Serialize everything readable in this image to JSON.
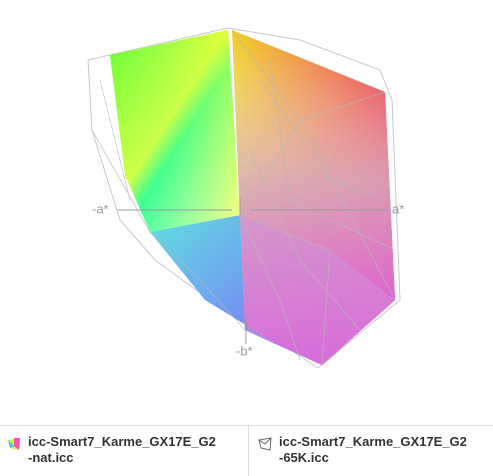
{
  "axes": {
    "neg_a": "-a*",
    "pos_a": "a*",
    "neg_b": "-b*"
  },
  "legend": [
    {
      "label": "icc-Smart7_Karme_GX17E_G2-nat.icc"
    },
    {
      "label": "icc-Smart7_Karme_GX17E_G2-65K.icc"
    }
  ]
}
